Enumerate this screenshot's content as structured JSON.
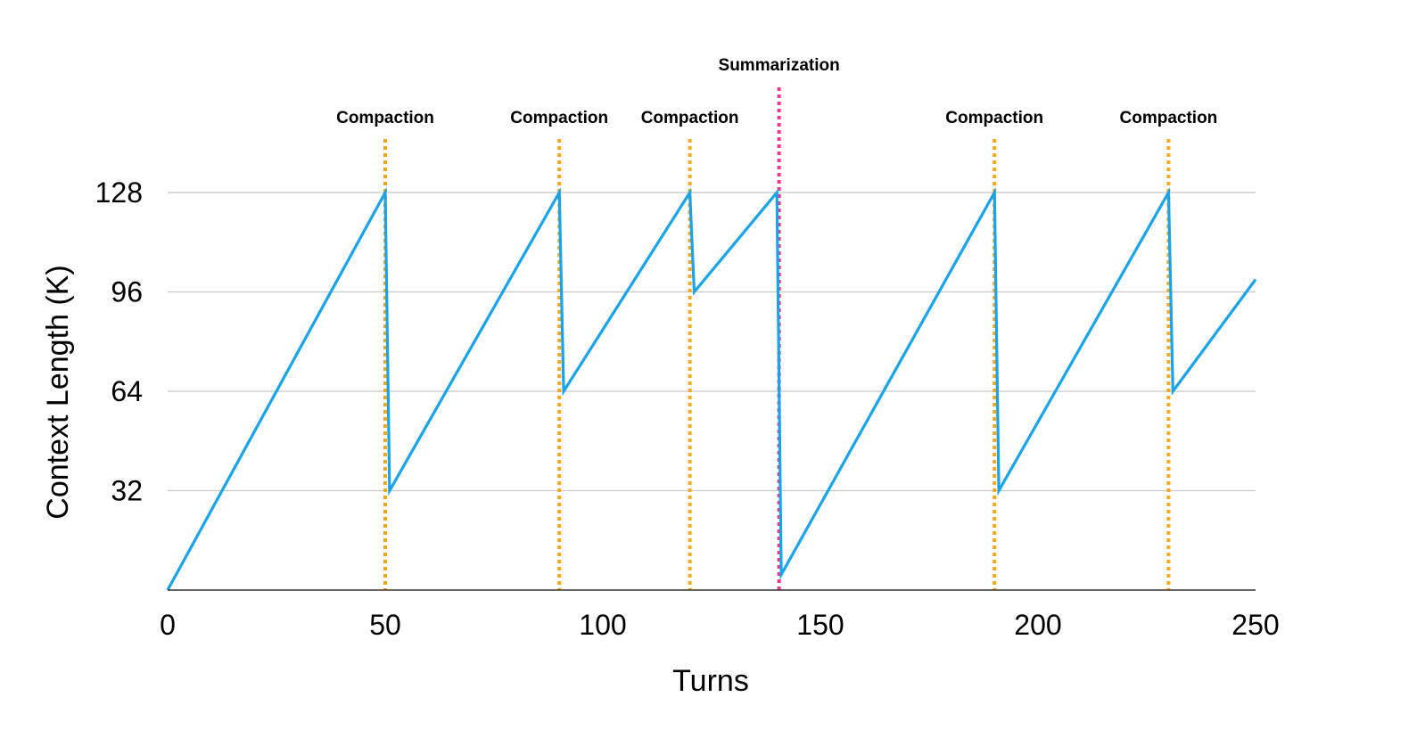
{
  "chart_data": {
    "type": "line",
    "xlabel": "Turns",
    "ylabel": "Context Length (K)",
    "xlim": [
      0,
      250
    ],
    "ylim": [
      0,
      128
    ],
    "xticks": [
      0,
      50,
      100,
      150,
      200,
      250
    ],
    "yticks": [
      32,
      64,
      96,
      128
    ],
    "grid": "horizontal",
    "series": [
      {
        "color": "#1aa3e8",
        "points": [
          [
            0,
            0
          ],
          [
            50,
            128
          ],
          [
            51,
            32
          ],
          [
            90,
            128
          ],
          [
            91,
            64
          ],
          [
            120,
            128
          ],
          [
            121,
            96
          ],
          [
            140,
            128
          ],
          [
            141,
            5
          ],
          [
            190,
            128
          ],
          [
            191,
            32
          ],
          [
            230,
            128
          ],
          [
            231,
            64
          ],
          [
            250,
            100
          ]
        ]
      }
    ],
    "markers": [
      {
        "x": 50,
        "label": "Compaction",
        "color": "#f5a623",
        "label_row": "lower"
      },
      {
        "x": 90,
        "label": "Compaction",
        "color": "#f5a623",
        "label_row": "lower"
      },
      {
        "x": 120,
        "label": "Compaction",
        "color": "#f5a623",
        "label_row": "lower"
      },
      {
        "x": 140.5,
        "label": "Summarization",
        "color": "#f0358f",
        "label_row": "upper"
      },
      {
        "x": 190,
        "label": "Compaction",
        "color": "#f5a623",
        "label_row": "lower"
      },
      {
        "x": 230,
        "label": "Compaction",
        "color": "#f5a623",
        "label_row": "lower"
      }
    ]
  }
}
